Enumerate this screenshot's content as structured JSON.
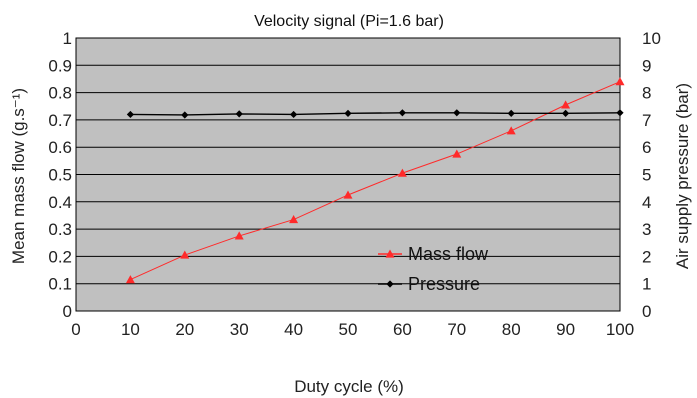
{
  "chart_data": {
    "type": "line",
    "title": "Velocity signal (Pi=1.6 bar)",
    "xlabel": "Duty cycle (%)",
    "ylabel": "Mean mass flow (g.s⁻¹)",
    "y2label": "Air supply pressure (bar)",
    "xlim": [
      0,
      100
    ],
    "ylim": [
      0,
      1
    ],
    "y2lim": [
      0,
      10
    ],
    "xticks": [
      "0",
      "10",
      "20",
      "30",
      "40",
      "50",
      "60",
      "70",
      "80",
      "90",
      "100"
    ],
    "yticks": [
      "0",
      "0.1",
      "0.2",
      "0.3",
      "0.4",
      "0.5",
      "0.6",
      "0.7",
      "0.8",
      "0.9",
      "1"
    ],
    "y2ticks": [
      "0",
      "1",
      "2",
      "3",
      "4",
      "5",
      "6",
      "7",
      "8",
      "9",
      "10"
    ],
    "grid": true,
    "legend_position": "center-right",
    "plot_background": "#c0c0c0",
    "series": [
      {
        "name": "Mass flow",
        "axis": "left",
        "color": "#ff2a2a",
        "marker": "triangle",
        "x": [
          10,
          20,
          30,
          40,
          50,
          60,
          70,
          80,
          90,
          100
        ],
        "values": [
          0.115,
          0.205,
          0.275,
          0.335,
          0.425,
          0.505,
          0.575,
          0.66,
          0.755,
          0.84
        ]
      },
      {
        "name": "Pressure",
        "axis": "right",
        "color": "#000000",
        "marker": "diamond",
        "x": [
          10,
          20,
          30,
          40,
          50,
          60,
          70,
          80,
          90,
          100
        ],
        "values": [
          7.2,
          7.18,
          7.22,
          7.2,
          7.24,
          7.26,
          7.26,
          7.24,
          7.24,
          7.26
        ]
      }
    ]
  }
}
